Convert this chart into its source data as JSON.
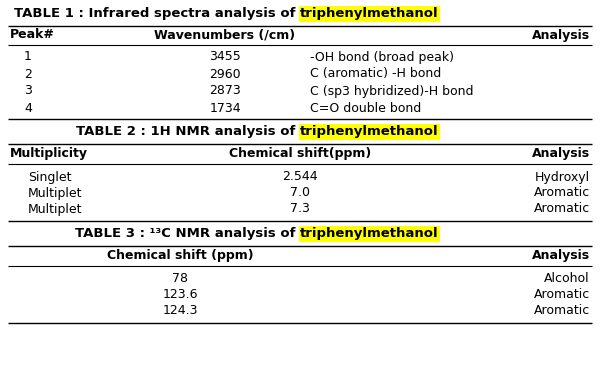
{
  "table1_title_plain": "TABLE 1 : Infrared spectra analysis of ",
  "table1_title_highlight": "triphenylmethanol",
  "table2_title_plain": "TABLE 2 : 1H NMR analysis of ",
  "table2_title_highlight": "triphenylmethanol",
  "table3_title_plain": "TABLE 3 : ¹³C NMR analysis of ",
  "table3_title_highlight": "triphenylmethanol",
  "table1_headers": [
    "Peak#",
    "Wavenumbers (/cm)",
    "Analysis"
  ],
  "table1_rows": [
    [
      "1",
      "3455",
      "-OH bond (broad peak)"
    ],
    [
      "2",
      "2960",
      "C (aromatic) -H bond"
    ],
    [
      "3",
      "2873",
      "C (sp3 hybridized)-H bond"
    ],
    [
      "4",
      "1734",
      "C=O double bond"
    ]
  ],
  "table2_headers": [
    "Multiplicity",
    "Chemical shift(ppm)",
    "Analysis"
  ],
  "table2_rows": [
    [
      "Singlet",
      "2.544",
      "Hydroxyl"
    ],
    [
      "Multiplet",
      "7.0",
      "Aromatic"
    ],
    [
      "Multiplet",
      "7.3",
      "Aromatic"
    ]
  ],
  "table3_headers": [
    "Chemical shift (ppm)",
    "Analysis"
  ],
  "table3_rows": [
    [
      "78",
      "Alcohol"
    ],
    [
      "123.6",
      "Aromatic"
    ],
    [
      "124.3",
      "Aromatic"
    ]
  ],
  "highlight_color": "#FFFF00",
  "bg_color": "#FFFFFF",
  "text_color": "#000000"
}
